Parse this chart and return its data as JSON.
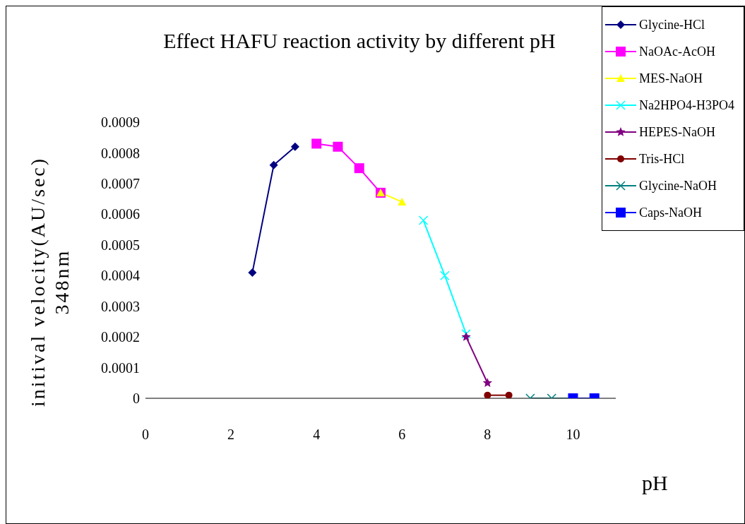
{
  "chart_data": {
    "type": "line",
    "title": "Effect HAFU reaction activity by different pH",
    "xlabel": "pH",
    "ylabel": "initival velocity(AU/sec)\n348nm",
    "xlim": [
      0,
      11
    ],
    "xticks": [
      0,
      2,
      4,
      6,
      8,
      10
    ],
    "ylim": [
      0,
      0.0009
    ],
    "yticks": [
      0,
      0.0001,
      0.0002,
      0.0003,
      0.0004,
      0.0005,
      0.0006,
      0.0007,
      0.0008,
      0.0009
    ],
    "grid": false,
    "legend": "top right",
    "line_style": "solid",
    "series": [
      {
        "name": "Glycine-HCl",
        "color": "#000080",
        "marker": "diamond",
        "x": [
          2.5,
          3,
          3.5
        ],
        "values": [
          0.00041,
          0.00076,
          0.00082
        ]
      },
      {
        "name": "NaOAc-AcOH",
        "color": "#ff00ff",
        "marker": "square",
        "x": [
          4,
          4.5,
          5,
          5.5
        ],
        "values": [
          0.00083,
          0.00082,
          0.00075,
          0.00067
        ]
      },
      {
        "name": "MES-NaOH",
        "color": "#ffff00",
        "marker": "triangle",
        "x": [
          5.5,
          6
        ],
        "values": [
          0.00067,
          0.00064
        ]
      },
      {
        "name": "Na2HPO4-H3PO4",
        "color": "#00ffff",
        "marker": "cross",
        "x": [
          6.5,
          7,
          7.5
        ],
        "values": [
          0.00058,
          0.0004,
          0.00021
        ]
      },
      {
        "name": "HEPES-NaOH",
        "color": "#800080",
        "marker": "star",
        "x": [
          7.5,
          8
        ],
        "values": [
          0.0002,
          5e-05
        ]
      },
      {
        "name": "Tris-HCl",
        "color": "#800000",
        "marker": "circle",
        "x": [
          8,
          8.5
        ],
        "values": [
          1e-05,
          1e-05
        ]
      },
      {
        "name": "Glycine-NaOH",
        "color": "#008080",
        "marker": "cross",
        "x": [
          9,
          9.5,
          10
        ],
        "values": [
          0,
          0,
          0
        ]
      },
      {
        "name": "Caps-NaOH",
        "color": "#0000ff",
        "marker": "square",
        "x": [
          10,
          10.5
        ],
        "values": [
          0,
          0
        ]
      }
    ]
  }
}
